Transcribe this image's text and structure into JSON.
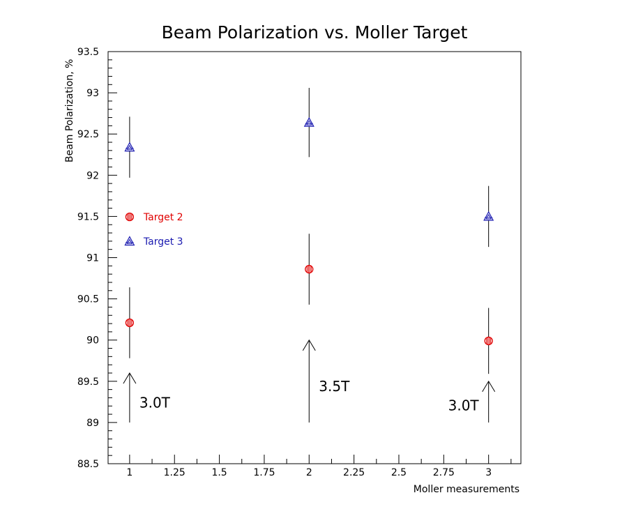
{
  "chart_data": {
    "type": "scatter",
    "title": "Beam Polarization vs. Moller Target",
    "xlabel": "Moller measurements",
    "ylabel": "Beam Polarization, %",
    "xlim": [
      0.88,
      3.18
    ],
    "ylim": [
      88.5,
      93.5
    ],
    "grid": false,
    "legend_position": "middle-left",
    "x_ticks": [
      1,
      1.25,
      1.5,
      1.75,
      2,
      2.25,
      2.5,
      2.75,
      3
    ],
    "x_tick_labels": [
      "1",
      "1.25",
      "1.5",
      "1.75",
      "2",
      "2.25",
      "2.5",
      "2.75",
      "3"
    ],
    "y_ticks": [
      88.5,
      89,
      89.5,
      90,
      90.5,
      91,
      91.5,
      92,
      92.5,
      93,
      93.5
    ],
    "y_tick_labels": [
      "88.5",
      "89",
      "89.5",
      "90",
      "90.5",
      "91",
      "91.5",
      "92",
      "92.5",
      "93",
      "93.5"
    ],
    "series": [
      {
        "name": "Target 2",
        "color": "#e00000",
        "marker": "circle",
        "x": [
          1,
          2,
          3
        ],
        "y": [
          90.21,
          90.86,
          89.99
        ],
        "err": [
          0.43,
          0.43,
          0.4
        ]
      },
      {
        "name": "Target 3",
        "color": "#1a1ab0",
        "marker": "triangle",
        "x": [
          1,
          2,
          3
        ],
        "y": [
          92.34,
          92.64,
          91.5
        ],
        "err": [
          0.37,
          0.42,
          0.37
        ]
      }
    ],
    "annotations": [
      {
        "text": "3.0T",
        "x": 1,
        "y_from": 89.0,
        "y_to": 89.6,
        "label_side": "right"
      },
      {
        "text": "3.5T",
        "x": 2,
        "y_from": 89.0,
        "y_to": 90.0,
        "label_side": "right"
      },
      {
        "text": "3.0T",
        "x": 3,
        "y_from": 89.0,
        "y_to": 89.5,
        "label_side": "left"
      }
    ]
  }
}
